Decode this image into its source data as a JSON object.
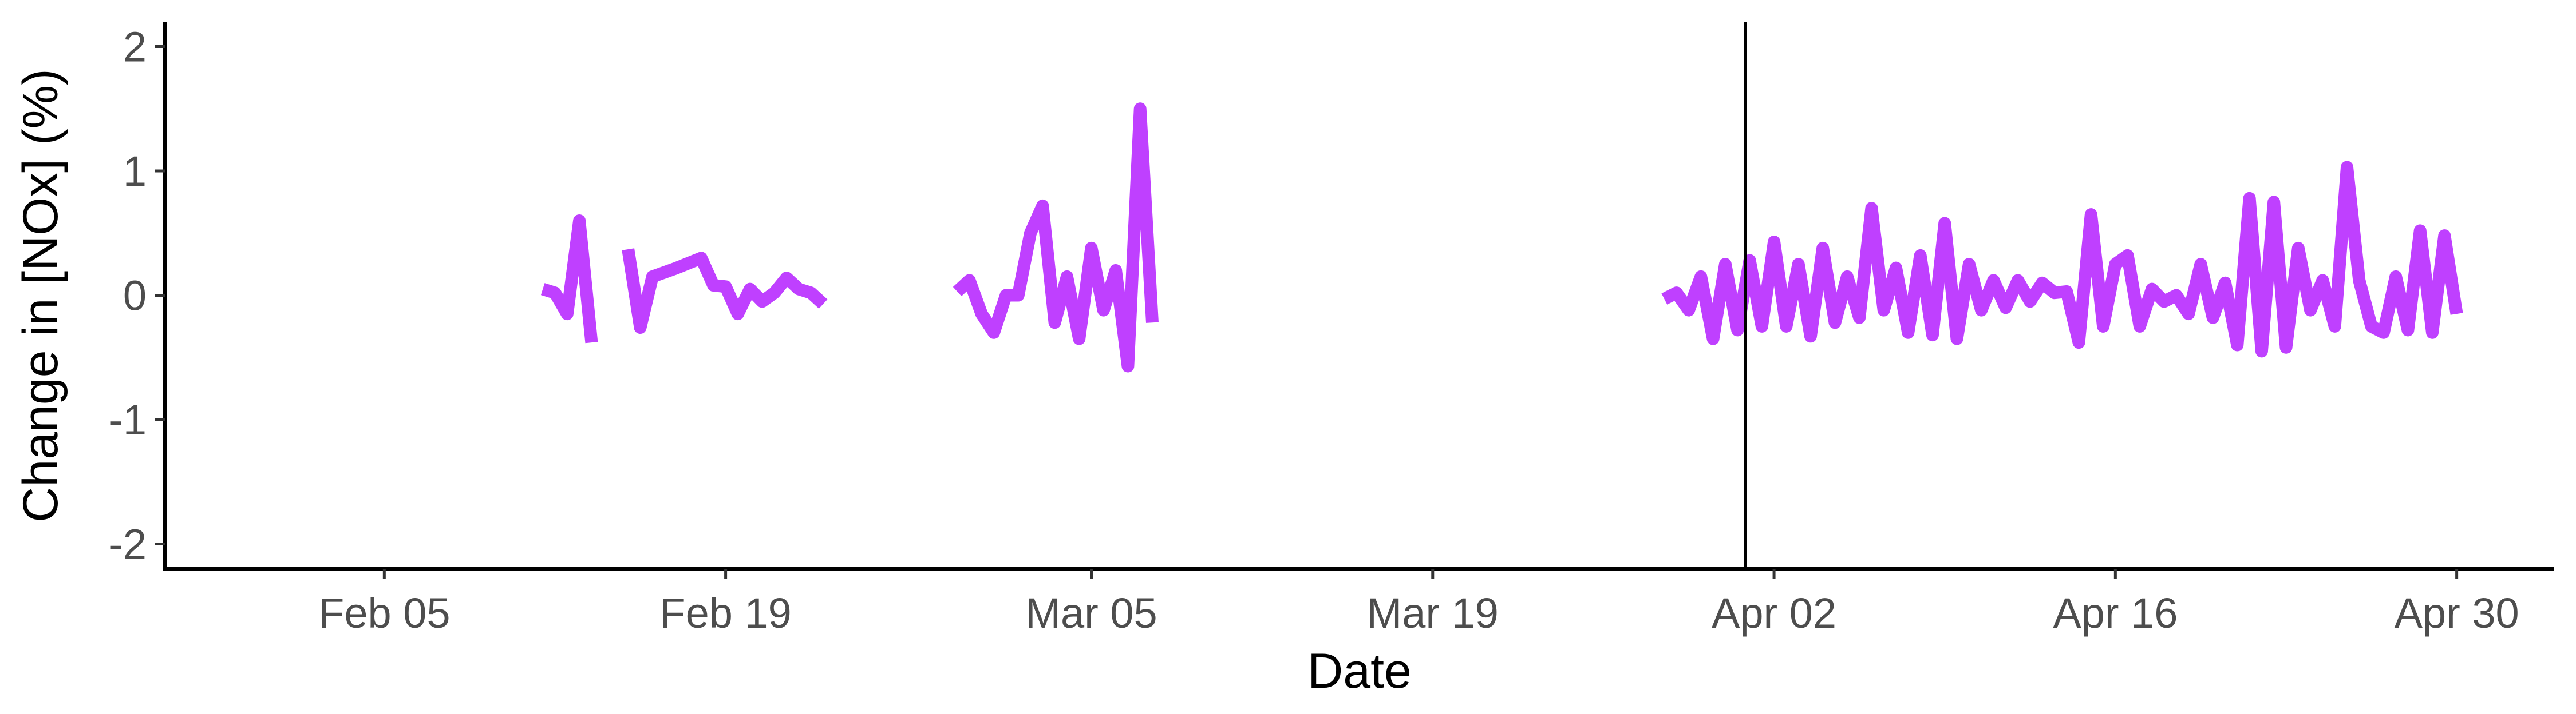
{
  "chart_data": {
    "type": "line",
    "title": "",
    "xlabel": "Date",
    "ylabel": "Change in [NOx] (%)",
    "xlim": [
      "2020-01-27",
      "2020-05-04"
    ],
    "ylim": [
      -2.2,
      2.2
    ],
    "yticks": [
      2,
      1,
      0,
      -1,
      -2
    ],
    "ytick_labels": [
      "2",
      "1",
      "0",
      "-1",
      "-2"
    ],
    "xticks": [
      "2020-02-05",
      "2020-02-19",
      "2020-03-05",
      "2020-03-19",
      "2020-04-02",
      "2020-04-16",
      "2020-04-30"
    ],
    "xtick_labels": [
      "Feb 05",
      "Feb 19",
      "Mar 05",
      "Mar 19",
      "Apr 02",
      "Apr 16",
      "Apr 30"
    ],
    "grid": false,
    "vline": {
      "x": "2020-03-31T20:00",
      "color": "#000000"
    },
    "series": [
      {
        "color": "#bf40ff",
        "segments": [
          [
            [
              "2020-02-11T12:00",
              0.05
            ],
            [
              "2020-02-12T00:00",
              0.02
            ],
            [
              "2020-02-12T12:00",
              -0.15
            ],
            [
              "2020-02-13T00:00",
              0.6
            ],
            [
              "2020-02-13T12:00",
              -0.38
            ]
          ],
          [
            [
              "2020-02-15T00:00",
              0.37
            ],
            [
              "2020-02-15T12:00",
              -0.26
            ],
            [
              "2020-02-16T00:00",
              0.15
            ],
            [
              "2020-02-17T00:00",
              0.22
            ],
            [
              "2020-02-18T00:00",
              0.3
            ],
            [
              "2020-02-18T12:00",
              0.08
            ],
            [
              "2020-02-19T00:00",
              0.07
            ],
            [
              "2020-02-19T12:00",
              -0.15
            ],
            [
              "2020-02-20T00:00",
              0.05
            ],
            [
              "2020-02-20T12:00",
              -0.05
            ],
            [
              "2020-02-21T00:00",
              0.02
            ],
            [
              "2020-02-21T12:00",
              0.14
            ],
            [
              "2020-02-22T00:00",
              0.05
            ],
            [
              "2020-02-22T12:00",
              0.02
            ],
            [
              "2020-02-23T00:00",
              -0.07
            ]
          ],
          [
            [
              "2020-02-28T12:00",
              0.03
            ],
            [
              "2020-02-29T00:00",
              0.12
            ],
            [
              "2020-02-29T12:00",
              -0.15
            ],
            [
              "2020-03-01T00:00",
              -0.3
            ],
            [
              "2020-03-01T12:00",
              0.0
            ],
            [
              "2020-03-02T00:00",
              0.0
            ],
            [
              "2020-03-02T12:00",
              0.5
            ],
            [
              "2020-03-03T00:00",
              0.72
            ],
            [
              "2020-03-03T12:00",
              -0.22
            ],
            [
              "2020-03-04T00:00",
              0.15
            ],
            [
              "2020-03-04T12:00",
              -0.35
            ],
            [
              "2020-03-05T00:00",
              0.38
            ],
            [
              "2020-03-05T12:00",
              -0.12
            ],
            [
              "2020-03-06T00:00",
              0.2
            ],
            [
              "2020-03-06T12:00",
              -0.57
            ],
            [
              "2020-03-07T00:00",
              1.5
            ],
            [
              "2020-03-07T12:00",
              -0.22
            ]
          ],
          [
            [
              "2020-03-28T12:00",
              -0.03
            ],
            [
              "2020-03-29T00:00",
              0.02
            ],
            [
              "2020-03-29T12:00",
              -0.12
            ],
            [
              "2020-03-30T00:00",
              0.15
            ],
            [
              "2020-03-30T12:00",
              -0.35
            ],
            [
              "2020-03-31T00:00",
              0.25
            ],
            [
              "2020-03-31T12:00",
              -0.28
            ],
            [
              "2020-04-01T00:00",
              0.28
            ],
            [
              "2020-04-01T12:00",
              -0.25
            ],
            [
              "2020-04-02T00:00",
              0.43
            ],
            [
              "2020-04-02T12:00",
              -0.25
            ],
            [
              "2020-04-03T00:00",
              0.25
            ],
            [
              "2020-04-03T12:00",
              -0.33
            ],
            [
              "2020-04-04T00:00",
              0.38
            ],
            [
              "2020-04-04T12:00",
              -0.22
            ],
            [
              "2020-04-05T00:00",
              0.15
            ],
            [
              "2020-04-05T12:00",
              -0.18
            ],
            [
              "2020-04-06T00:00",
              0.7
            ],
            [
              "2020-04-06T12:00",
              -0.12
            ],
            [
              "2020-04-07T00:00",
              0.22
            ],
            [
              "2020-04-07T12:00",
              -0.3
            ],
            [
              "2020-04-08T00:00",
              0.32
            ],
            [
              "2020-04-08T12:00",
              -0.32
            ],
            [
              "2020-04-09T00:00",
              0.58
            ],
            [
              "2020-04-09T12:00",
              -0.35
            ],
            [
              "2020-04-10T00:00",
              0.25
            ],
            [
              "2020-04-10T12:00",
              -0.12
            ],
            [
              "2020-04-11T00:00",
              0.12
            ],
            [
              "2020-04-11T12:00",
              -0.1
            ],
            [
              "2020-04-12T00:00",
              0.12
            ],
            [
              "2020-04-12T12:00",
              -0.05
            ],
            [
              "2020-04-13T00:00",
              0.1
            ],
            [
              "2020-04-13T12:00",
              0.02
            ],
            [
              "2020-04-14T00:00",
              0.03
            ],
            [
              "2020-04-14T12:00",
              -0.38
            ],
            [
              "2020-04-15T00:00",
              0.65
            ],
            [
              "2020-04-15T12:00",
              -0.25
            ],
            [
              "2020-04-16T00:00",
              0.25
            ],
            [
              "2020-04-16T12:00",
              0.32
            ],
            [
              "2020-04-17T00:00",
              -0.25
            ],
            [
              "2020-04-17T12:00",
              0.05
            ],
            [
              "2020-04-18T00:00",
              -0.05
            ],
            [
              "2020-04-18T12:00",
              0.0
            ],
            [
              "2020-04-19T00:00",
              -0.15
            ],
            [
              "2020-04-19T12:00",
              0.25
            ],
            [
              "2020-04-20T00:00",
              -0.18
            ],
            [
              "2020-04-20T12:00",
              0.1
            ],
            [
              "2020-04-21T00:00",
              -0.4
            ],
            [
              "2020-04-21T12:00",
              0.78
            ],
            [
              "2020-04-22T00:00",
              -0.45
            ],
            [
              "2020-04-22T12:00",
              0.75
            ],
            [
              "2020-04-23T00:00",
              -0.42
            ],
            [
              "2020-04-23T12:00",
              0.38
            ],
            [
              "2020-04-24T00:00",
              -0.12
            ],
            [
              "2020-04-24T12:00",
              0.12
            ],
            [
              "2020-04-25T00:00",
              -0.25
            ],
            [
              "2020-04-25T12:00",
              1.03
            ],
            [
              "2020-04-26T00:00",
              0.12
            ],
            [
              "2020-04-26T12:00",
              -0.25
            ],
            [
              "2020-04-27T00:00",
              -0.3
            ],
            [
              "2020-04-27T12:00",
              0.15
            ],
            [
              "2020-04-28T00:00",
              -0.28
            ],
            [
              "2020-04-28T12:00",
              0.52
            ],
            [
              "2020-04-29T00:00",
              -0.3
            ],
            [
              "2020-04-29T12:00",
              0.48
            ],
            [
              "2020-04-30T00:00",
              -0.15
            ]
          ]
        ]
      }
    ]
  }
}
